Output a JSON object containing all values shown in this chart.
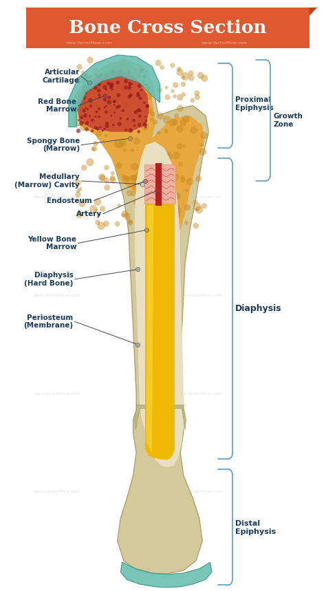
{
  "title": "Bone Cross Section",
  "title_color": "#ffffff",
  "title_bg_color": "#E05830",
  "bg_color": "#ffffff",
  "label_color": "#1a3a5c",
  "line_color": "#5a9cbf",
  "bone_outer_color": "#d4c99a",
  "bone_inner_color": "#e8e0c0",
  "spongy_color": "#e8a840",
  "red_marrow_color": "#c84030",
  "cartilage_color": "#6abfb0",
  "yellow_marrow_color": "#f0b800",
  "artery_color": "#b02020",
  "endosteum_color": "#f0b0a0",
  "watermark": "www.VectorMine.com",
  "labels": {
    "articular_cartilage": "Articular\nCartilage",
    "red_bone_marrow": "Red Bone\nMarrow",
    "spongy_bone": "Spongy Bone\n(Marrow)",
    "medullary_cavity": "Medullary\n(Marrow) Cavity",
    "endosteum": "Endosteum",
    "artery": "Artery",
    "yellow_bone_marrow": "Yellow Bone\nMarrow",
    "diaphysis_hard": "Diaphysis\n(Hard Bone)",
    "periosteum": "Periosteum\n(Membrane)",
    "proximal_epiphysis": "Proximal\nEpiphysis",
    "growth_zone": "Growth\nZone",
    "diaphysis": "Diaphysis",
    "distal_epiphysis": "Distal\nEpiphysis"
  }
}
